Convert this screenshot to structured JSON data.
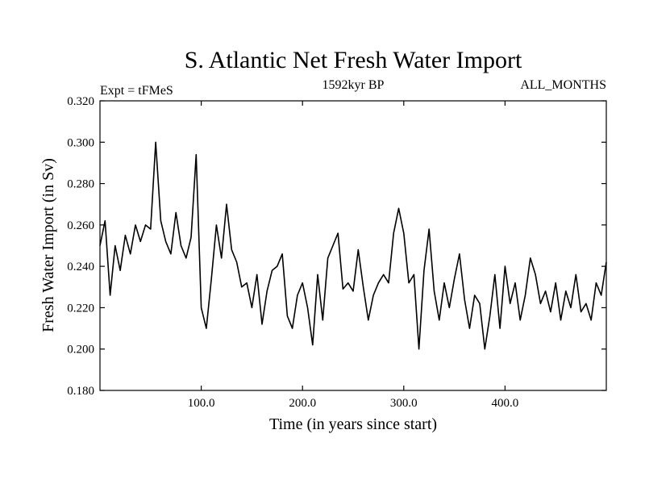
{
  "chart_data": {
    "type": "line",
    "title": "S. Atlantic Net Fresh Water Import",
    "subtitle": "1592kyr BP",
    "left_annotation": "Expt = tFMeS",
    "right_annotation": "ALL_MONTHS",
    "xlabel": "Time (in years since start)",
    "ylabel": "Fresh Water Import (in Sv)",
    "xlim": [
      0,
      500
    ],
    "ylim": [
      0.18,
      0.32
    ],
    "x_ticks": [
      100,
      200,
      300,
      400
    ],
    "x_tick_labels": [
      "100.0",
      "200.0",
      "300.0",
      "400.0"
    ],
    "y_ticks": [
      0.18,
      0.2,
      0.22,
      0.24,
      0.26,
      0.28,
      0.3,
      0.32
    ],
    "y_tick_labels": [
      "0.180",
      "0.200",
      "0.220",
      "0.240",
      "0.260",
      "0.280",
      "0.300",
      "0.320"
    ],
    "grid": false,
    "series": [
      {
        "name": "Fresh Water Import",
        "color": "#000000",
        "x": [
          0,
          5,
          10,
          15,
          20,
          25,
          30,
          35,
          40,
          45,
          50,
          55,
          60,
          65,
          70,
          75,
          80,
          85,
          90,
          95,
          100,
          105,
          110,
          115,
          120,
          125,
          130,
          135,
          140,
          145,
          150,
          155,
          160,
          165,
          170,
          175,
          180,
          185,
          190,
          195,
          200,
          205,
          210,
          215,
          220,
          225,
          230,
          235,
          240,
          245,
          250,
          255,
          260,
          265,
          270,
          275,
          280,
          285,
          290,
          295,
          300,
          305,
          310,
          315,
          320,
          325,
          330,
          335,
          340,
          345,
          350,
          355,
          360,
          365,
          370,
          375,
          380,
          385,
          390,
          395,
          400,
          405,
          410,
          415,
          420,
          425,
          430,
          435,
          440,
          445,
          450,
          455,
          460,
          465,
          470,
          475,
          480,
          485,
          490,
          495,
          500
        ],
        "y": [
          0.25,
          0.262,
          0.226,
          0.25,
          0.238,
          0.255,
          0.246,
          0.26,
          0.252,
          0.26,
          0.258,
          0.3,
          0.262,
          0.252,
          0.246,
          0.266,
          0.25,
          0.244,
          0.254,
          0.294,
          0.22,
          0.21,
          0.234,
          0.26,
          0.244,
          0.27,
          0.248,
          0.242,
          0.23,
          0.232,
          0.22,
          0.236,
          0.212,
          0.228,
          0.238,
          0.24,
          0.246,
          0.216,
          0.21,
          0.226,
          0.232,
          0.22,
          0.202,
          0.236,
          0.214,
          0.244,
          0.25,
          0.256,
          0.229,
          0.232,
          0.228,
          0.248,
          0.23,
          0.214,
          0.226,
          0.232,
          0.236,
          0.232,
          0.256,
          0.268,
          0.256,
          0.232,
          0.236,
          0.2,
          0.238,
          0.258,
          0.228,
          0.214,
          0.232,
          0.22,
          0.234,
          0.246,
          0.224,
          0.21,
          0.226,
          0.222,
          0.2,
          0.216,
          0.236,
          0.21,
          0.24,
          0.222,
          0.232,
          0.214,
          0.226,
          0.244,
          0.236,
          0.222,
          0.228,
          0.218,
          0.232,
          0.214,
          0.228,
          0.22,
          0.236,
          0.218,
          0.222,
          0.214,
          0.232,
          0.226,
          0.242
        ]
      }
    ]
  }
}
